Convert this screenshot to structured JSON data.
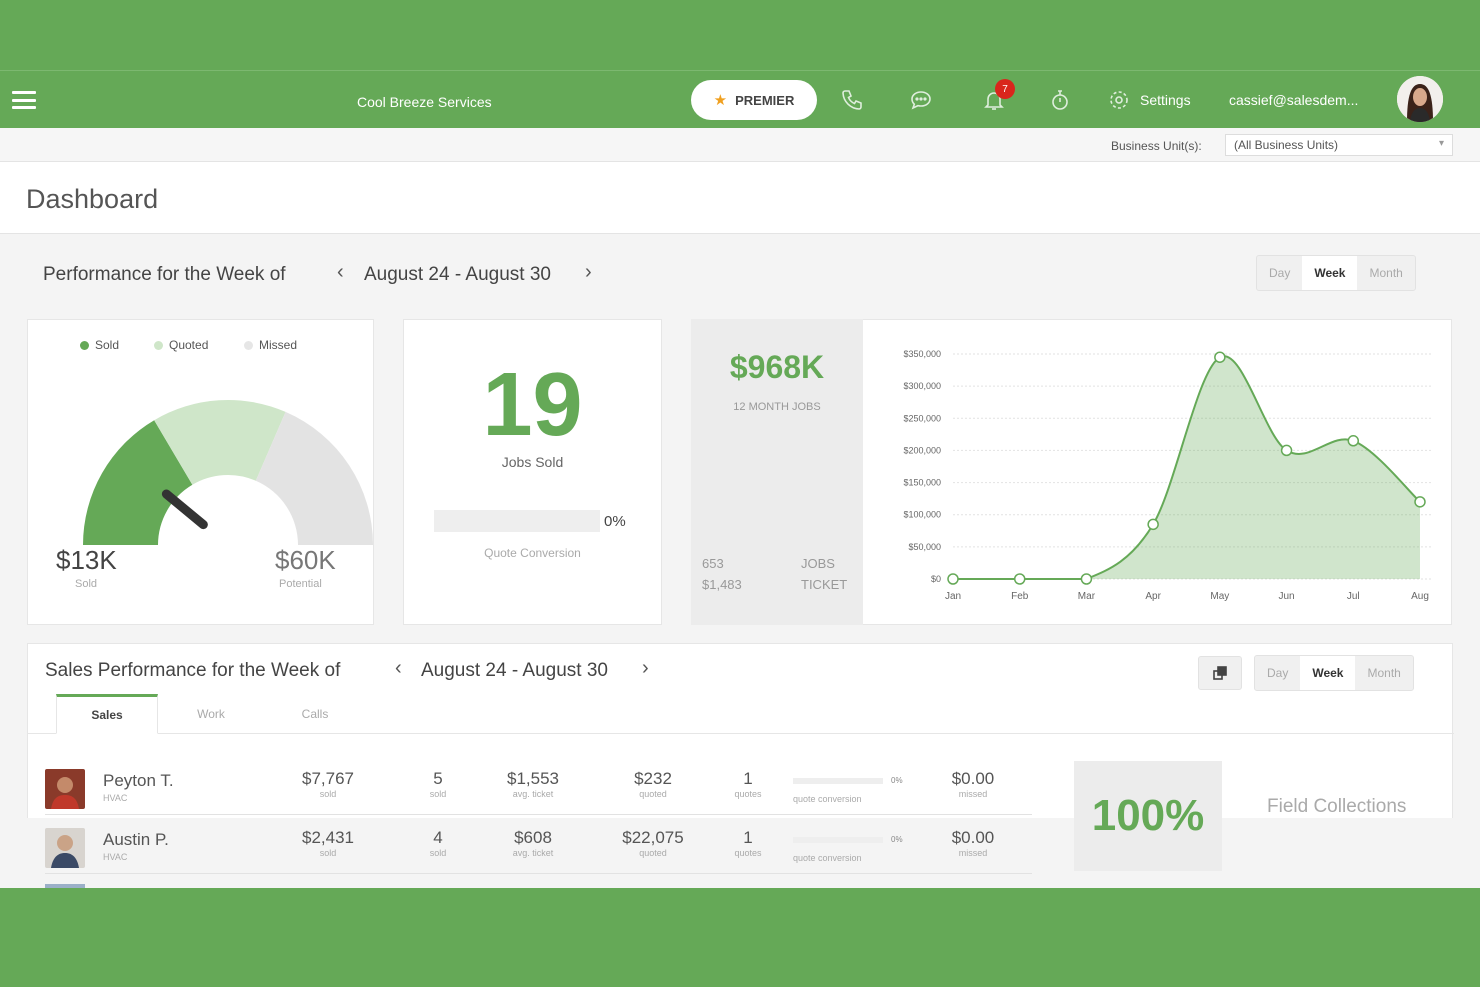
{
  "nav": {
    "company": "Cool Breeze Services",
    "premier_label": "PREMIER",
    "notification_count": "7",
    "settings_label": "Settings",
    "user_email": "cassief@salesdem..."
  },
  "business_unit": {
    "label": "Business Unit(s):",
    "value": "(All Business Units)"
  },
  "page": {
    "title": "Dashboard"
  },
  "performance": {
    "title": "Performance for the Week of",
    "range": "August 24 - August 30",
    "periods": [
      "Day",
      "Week",
      "Month"
    ],
    "active_period": "Week"
  },
  "gauge": {
    "legend": [
      "Sold",
      "Quoted",
      "Missed"
    ],
    "colors": {
      "sold": "#65a957",
      "quoted": "#cfe6c9",
      "missed": "#e2e2e2"
    },
    "sold_value": "$13K",
    "sold_label": "Sold",
    "potential_value": "$60K",
    "potential_label": "Potential",
    "needle_fraction": 0.22
  },
  "jobs": {
    "count": "19",
    "label": "Jobs Sold",
    "quote_conversion_pct": "0%",
    "quote_conversion_label": "Quote Conversion"
  },
  "revenue": {
    "value": "$968K",
    "label": "12 MONTH JOBS",
    "jobs_count": "653",
    "jobs_label": "JOBS",
    "ticket_value": "$1,483",
    "ticket_label": "TICKET"
  },
  "chart_data": {
    "type": "area",
    "categories": [
      "Jan",
      "Feb",
      "Mar",
      "Apr",
      "May",
      "Jun",
      "Jul",
      "Aug"
    ],
    "values": [
      0,
      0,
      0,
      85000,
      345000,
      200000,
      215000,
      120000
    ],
    "yticks": [
      0,
      50000,
      100000,
      150000,
      200000,
      250000,
      300000,
      350000
    ],
    "ytick_labels": [
      "$0",
      "$50,000",
      "$100,000",
      "$150,000",
      "$200,000",
      "$250,000",
      "$300,000",
      "$350,000"
    ],
    "ylim": [
      0,
      350000
    ],
    "grid": true,
    "color": "#65a957"
  },
  "sales": {
    "title": "Sales Performance for the Week of",
    "range": "August 24 - August 30",
    "periods": [
      "Day",
      "Week",
      "Month"
    ],
    "tabs": [
      "Sales",
      "Work",
      "Calls"
    ],
    "active_tab": "Sales",
    "rows": [
      {
        "name": "Peyton T.",
        "dept": "HVAC",
        "sold": "$7,767",
        "sold_label": "sold",
        "count": "5",
        "count_label": "sold",
        "avg": "$1,553",
        "avg_label": "avg. ticket",
        "quoted": "$232",
        "quoted_label": "quoted",
        "quotes": "1",
        "quotes_label": "quotes",
        "conv_pct": "0%",
        "conv_label": "quote conversion",
        "missed": "$0.00",
        "missed_label": "missed"
      },
      {
        "name": "Austin P.",
        "dept": "HVAC",
        "sold": "$2,431",
        "sold_label": "sold",
        "count": "4",
        "count_label": "sold",
        "avg": "$608",
        "avg_label": "avg. ticket",
        "quoted": "$22,075",
        "quoted_label": "quoted",
        "quotes": "1",
        "quotes_label": "quotes",
        "conv_pct": "0%",
        "conv_label": "quote conversion",
        "missed": "$0.00",
        "missed_label": "missed"
      }
    ],
    "collections_pct": "100%",
    "collections_label": "Field Collections"
  }
}
